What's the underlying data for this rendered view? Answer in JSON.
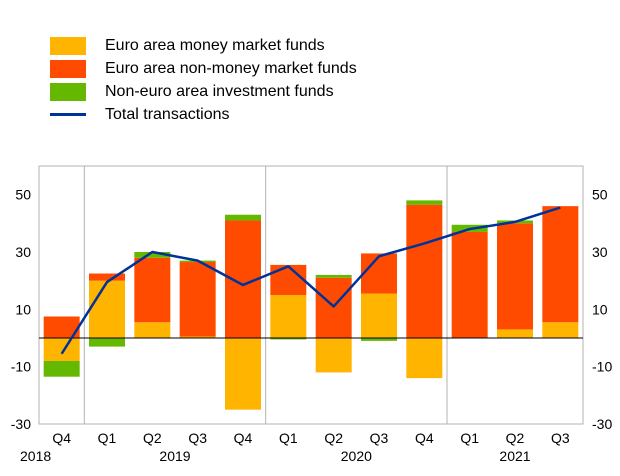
{
  "chart_data": {
    "type": "bar",
    "categories": [
      "Q4",
      "Q1",
      "Q2",
      "Q3",
      "Q4",
      "Q1",
      "Q2",
      "Q3",
      "Q4",
      "Q1",
      "Q2",
      "Q3"
    ],
    "years": [
      "2018",
      "2019",
      "2020",
      "2021"
    ],
    "year_groups": [
      {
        "label": "2018",
        "from": 0,
        "to": 0
      },
      {
        "label": "2019",
        "from": 1,
        "to": 4
      },
      {
        "label": "2020",
        "from": 5,
        "to": 8
      },
      {
        "label": "2021",
        "from": 9,
        "to": 11
      }
    ],
    "ylim": [
      -30,
      60
    ],
    "yticks": [
      -30,
      -10,
      10,
      30,
      50
    ],
    "ytick_labels": [
      "-30",
      "-10",
      "10",
      "30",
      "50"
    ],
    "grid": "vertical year separators",
    "legend_position": "top-left",
    "series": [
      {
        "name": "Euro area money market funds",
        "color": "#ffb400",
        "values": [
          -8,
          20,
          5.5,
          0.5,
          -25,
          15,
          -12,
          15.5,
          -14,
          0,
          3,
          5.5
        ]
      },
      {
        "name": "Euro area non-money market funds",
        "color": "#ff4b00",
        "values": [
          7.5,
          2.5,
          22.5,
          26,
          41,
          10.5,
          21,
          14,
          46.5,
          37,
          37,
          40.5
        ]
      },
      {
        "name": "Non-euro area investment funds",
        "color": "#65b800",
        "values": [
          -5.5,
          -3,
          2,
          0.5,
          2,
          -0.5,
          1,
          -1,
          1.5,
          2.5,
          1,
          0
        ]
      },
      {
        "name": "Total transactions",
        "color": "#003299",
        "type": "line",
        "values": [
          -5.5,
          19.5,
          30,
          27,
          18.5,
          25,
          11,
          28.5,
          33,
          38,
          40.5,
          45.5
        ]
      }
    ]
  }
}
